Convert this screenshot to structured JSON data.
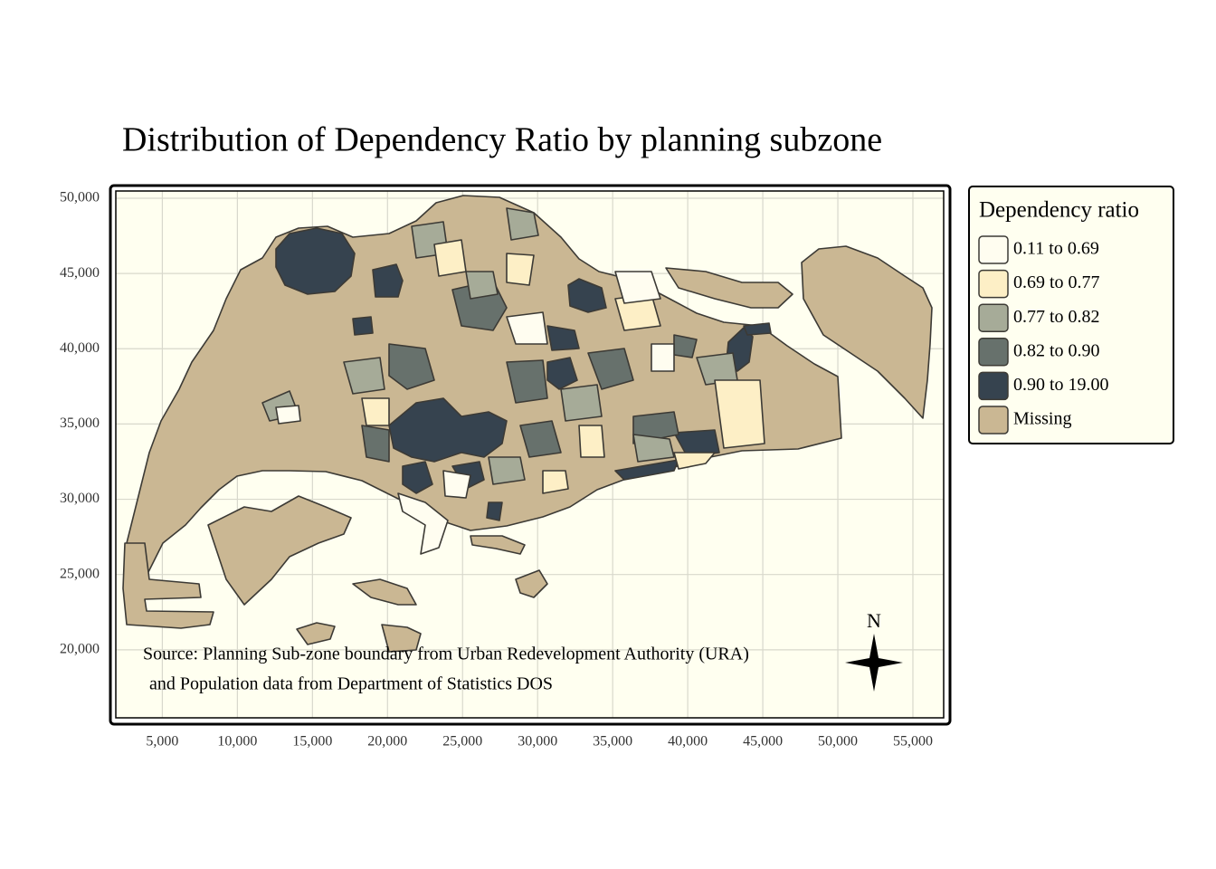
{
  "map": {
    "title": "Distribution of Dependency Ratio by planning subzone",
    "xlim": [
      1900,
      57050
    ],
    "ylim": [
      15480,
      50480
    ],
    "xticks": [
      {
        "value": 5000,
        "label": "5,000"
      },
      {
        "value": 10000,
        "label": "10,000"
      },
      {
        "value": 15000,
        "label": "15,000"
      },
      {
        "value": 20000,
        "label": "20,000"
      },
      {
        "value": 25000,
        "label": "25,000"
      },
      {
        "value": 30000,
        "label": "30,000"
      },
      {
        "value": 35000,
        "label": "35,000"
      },
      {
        "value": 40000,
        "label": "40,000"
      },
      {
        "value": 45000,
        "label": "45,000"
      },
      {
        "value": 50000,
        "label": "50,000"
      },
      {
        "value": 55000,
        "label": "55,000"
      }
    ],
    "yticks": [
      {
        "value": 20000,
        "label": "20,000"
      },
      {
        "value": 25000,
        "label": "25,000"
      },
      {
        "value": 30000,
        "label": "30,000"
      },
      {
        "value": 35000,
        "label": "35,000"
      },
      {
        "value": 40000,
        "label": "40,000"
      },
      {
        "value": 45000,
        "label": "45,000"
      },
      {
        "value": 50000,
        "label": "50,000"
      }
    ],
    "grid": true,
    "background": "#fffff0",
    "legend": {
      "title": "Dependency ratio",
      "items": [
        {
          "label": "0.11 to 0.69",
          "color": "#fffdf0"
        },
        {
          "label": "0.69 to 0.77",
          "color": "#fdefc6"
        },
        {
          "label": "0.77 to 0.82",
          "color": "#a6ab98"
        },
        {
          "label": "0.82 to 0.90",
          "color": "#67716c"
        },
        {
          "label": "0.90 to 19.00",
          "color": "#36434f"
        },
        {
          "label": "Missing",
          "color": "#cab793"
        }
      ]
    },
    "source": [
      "Source: Planning Sub-zone boundary from Urban Redevelopment Authority (URA)",
      "and Population data from Department of Statistics DOS"
    ],
    "north": "N"
  }
}
